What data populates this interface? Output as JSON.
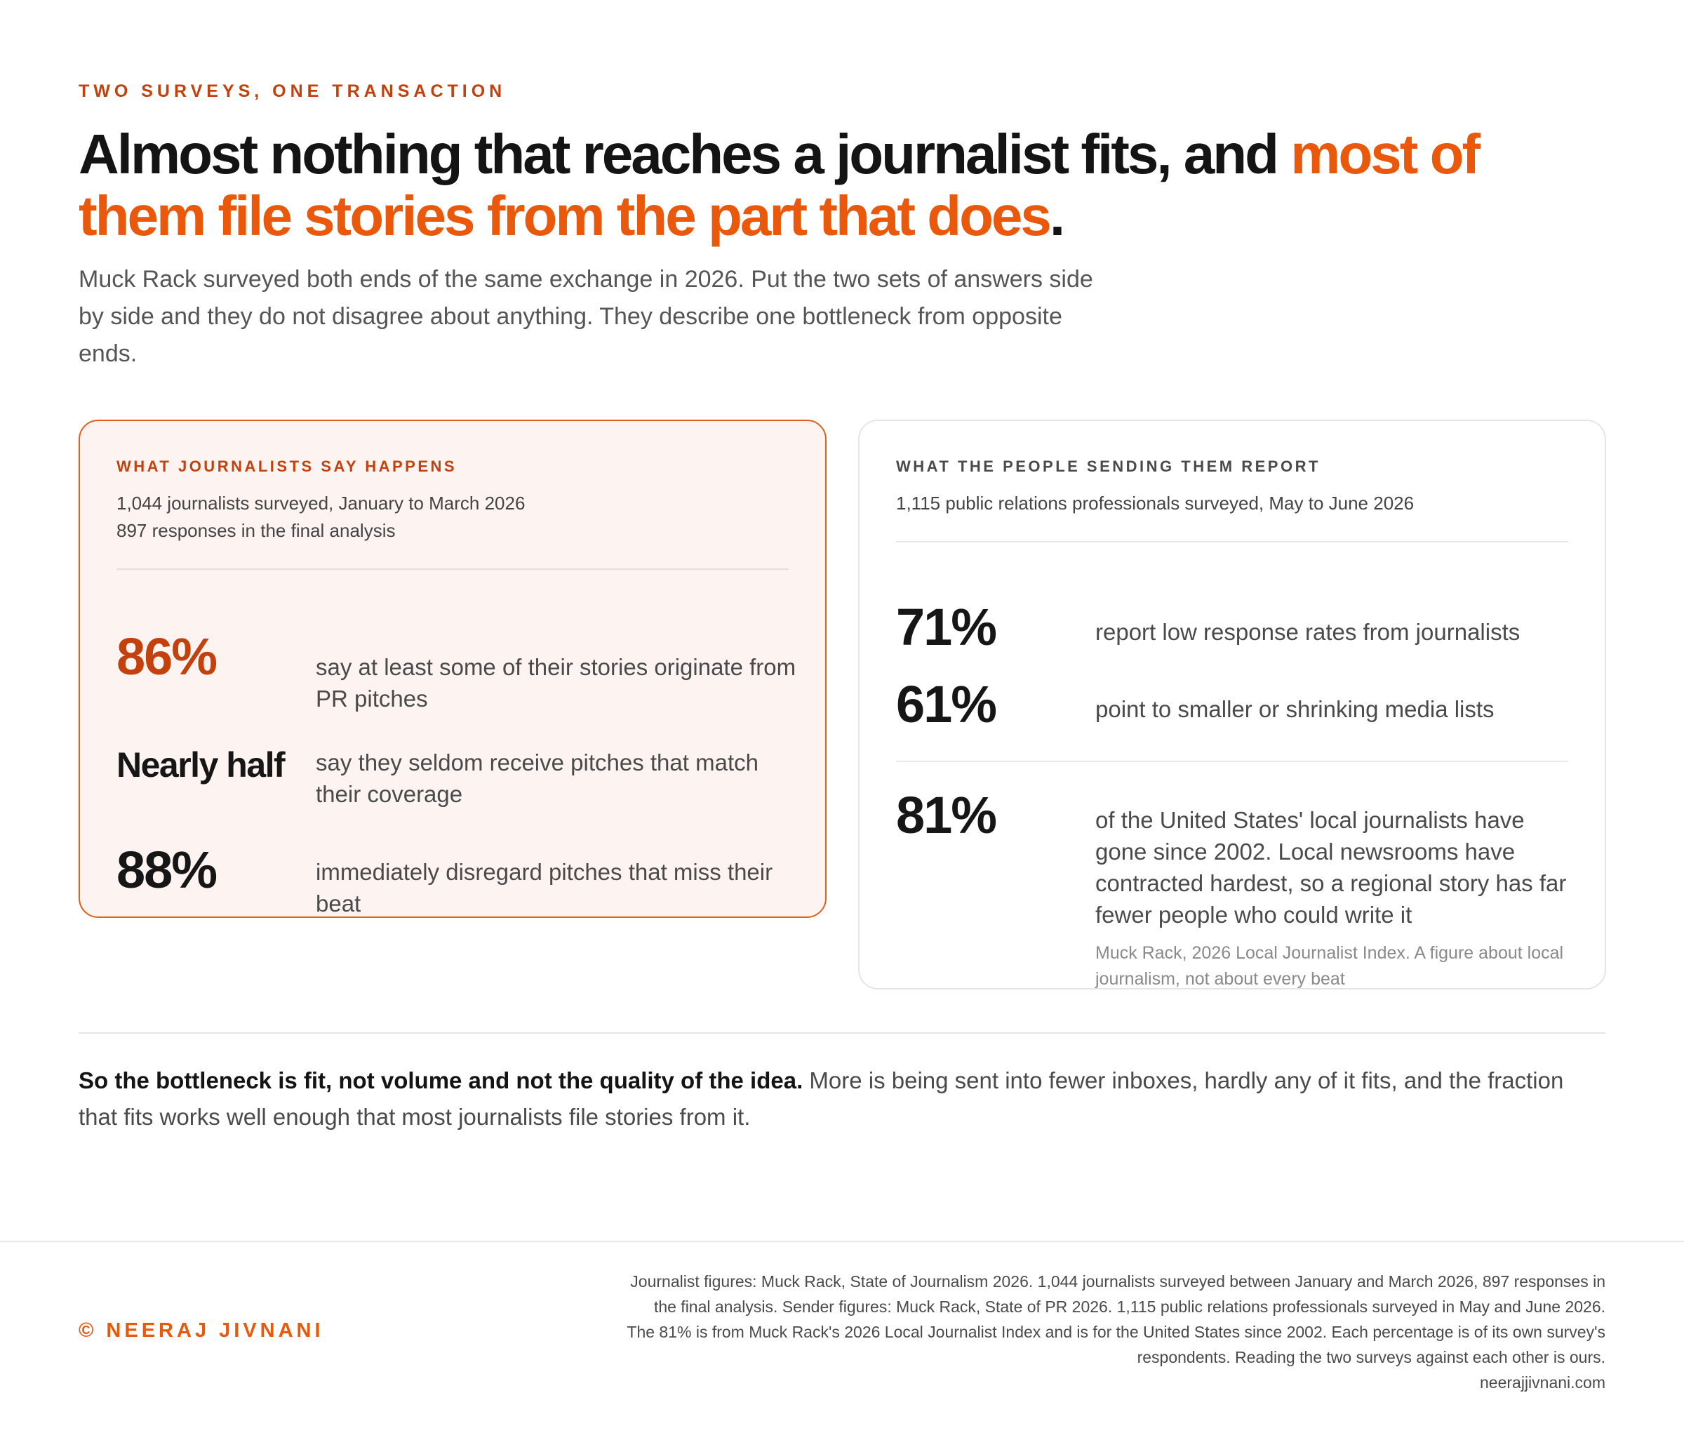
{
  "kicker": "TWO SURVEYS, ONE TRANSACTION",
  "headline": {
    "plain": "Almost nothing that reaches a journalist fits, and ",
    "accent": "most of them file stories from the part that does",
    "end": "."
  },
  "intro": "Muck Rack surveyed both ends of the same exchange in 2026. Put the two sets of answers side by side and they do not disagree about anything. They describe one bottleneck from opposite ends.",
  "journalists": {
    "label": "WHAT JOURNALISTS SAY HAPPENS",
    "meta_line1": "1,044 journalists surveyed, January to March 2026",
    "meta_line2": "897 responses in the final analysis",
    "stats": [
      {
        "figure": "86%",
        "text": "say at least some of their stories originate from PR pitches"
      },
      {
        "figure": "Nearly half",
        "text": "say they seldom receive pitches that match their coverage"
      },
      {
        "figure": "88%",
        "text": "immediately disregard pitches that miss their beat"
      }
    ]
  },
  "senders": {
    "label": "WHAT THE PEOPLE SENDING THEM REPORT",
    "meta_line1": "1,115 public relations professionals surveyed, May to June 2026",
    "stats": [
      {
        "figure": "71%",
        "text": "report low response rates from journalists"
      },
      {
        "figure": "61%",
        "text": "point to smaller or shrinking media lists"
      },
      {
        "figure": "81%",
        "text": "of the United States' local journalists have gone since 2002. Local newsrooms have contracted hardest, so a regional story has far fewer people who could write it",
        "source": "Muck Rack, 2026 Local Journalist Index. A figure about local journalism, not about every beat"
      }
    ]
  },
  "conclusion": {
    "bold": "So the bottleneck is fit, not volume and not the quality of the idea.",
    "rest": " More is being sent into fewer inboxes, hardly any of it fits, and the fraction that fits works well enough that most journalists file stories from it."
  },
  "footer": {
    "credit": "© NEERAJ JIVNANI",
    "sources": "Journalist figures: Muck Rack, State of Journalism 2026. 1,044 journalists surveyed between January and March 2026, 897 responses in the final analysis. Sender figures: Muck Rack, State of PR 2026. 1,115 public relations professionals surveyed in May and June 2026. The 81% is from Muck Rack's 2026 Local Journalist Index and is for the United States since 2002. Each percentage is of its own survey's respondents. Reading the two surveys against each other is ours.",
    "site": "neerajjivnani.com"
  },
  "colors": {
    "accent": "#ea580c",
    "accent_dark": "#c2410c",
    "card_tint": "#fdf3f0"
  }
}
